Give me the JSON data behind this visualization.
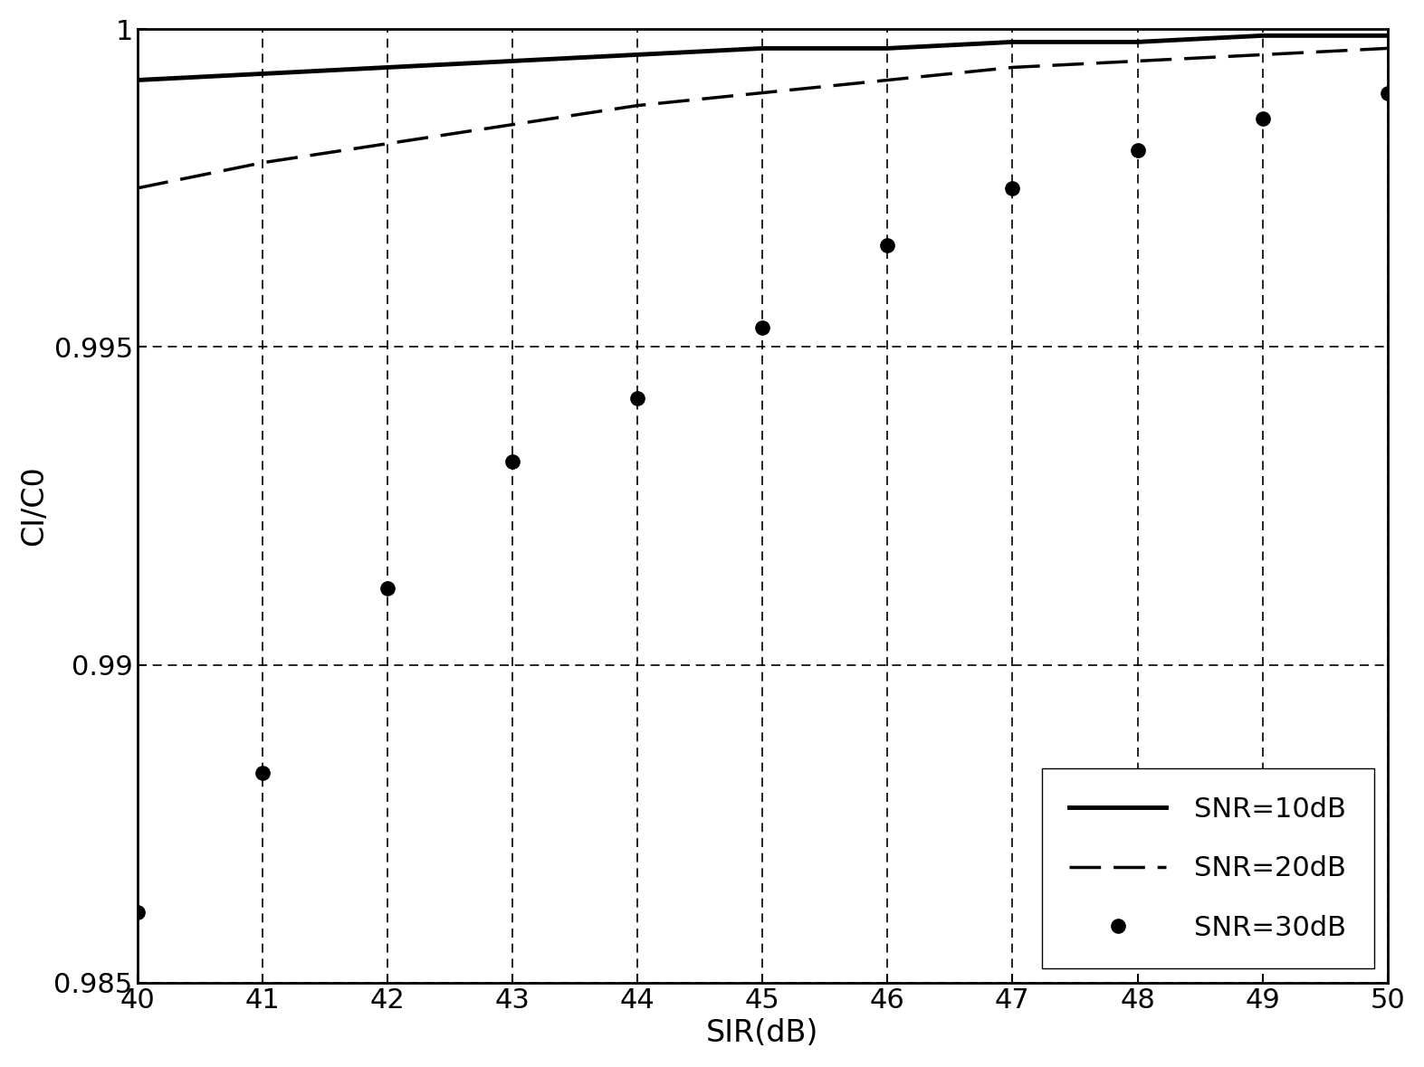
{
  "x": [
    40,
    41,
    42,
    43,
    44,
    45,
    46,
    47,
    48,
    49,
    50
  ],
  "snr10_y": [
    0.9992,
    0.9993,
    0.9994,
    0.9995,
    0.9996,
    0.9997,
    0.9997,
    0.9998,
    0.9998,
    0.9999,
    0.9999
  ],
  "snr20_y": [
    0.9975,
    0.9979,
    0.9982,
    0.9985,
    0.9988,
    0.999,
    0.9992,
    0.9994,
    0.9995,
    0.9996,
    0.9997
  ],
  "snr30_y": [
    0.9861,
    0.9883,
    0.9912,
    0.9932,
    0.9942,
    0.9953,
    0.9966,
    0.9975,
    0.9981,
    0.9986,
    0.999
  ],
  "xlim": [
    40,
    50
  ],
  "ylim": [
    0.985,
    1.0
  ],
  "yticks": [
    0.985,
    0.99,
    0.995,
    1.0
  ],
  "xticks": [
    40,
    41,
    42,
    43,
    44,
    45,
    46,
    47,
    48,
    49,
    50
  ],
  "xlabel": "SIR(dB)",
  "ylabel": "CI/C0",
  "legend_labels": [
    "SNR=10dB",
    "SNR=20dB",
    "SNR=30dB"
  ],
  "grid_color": "#000000",
  "background": "#ffffff",
  "font_size": 22,
  "tick_font_size": 22,
  "label_font_size": 24
}
